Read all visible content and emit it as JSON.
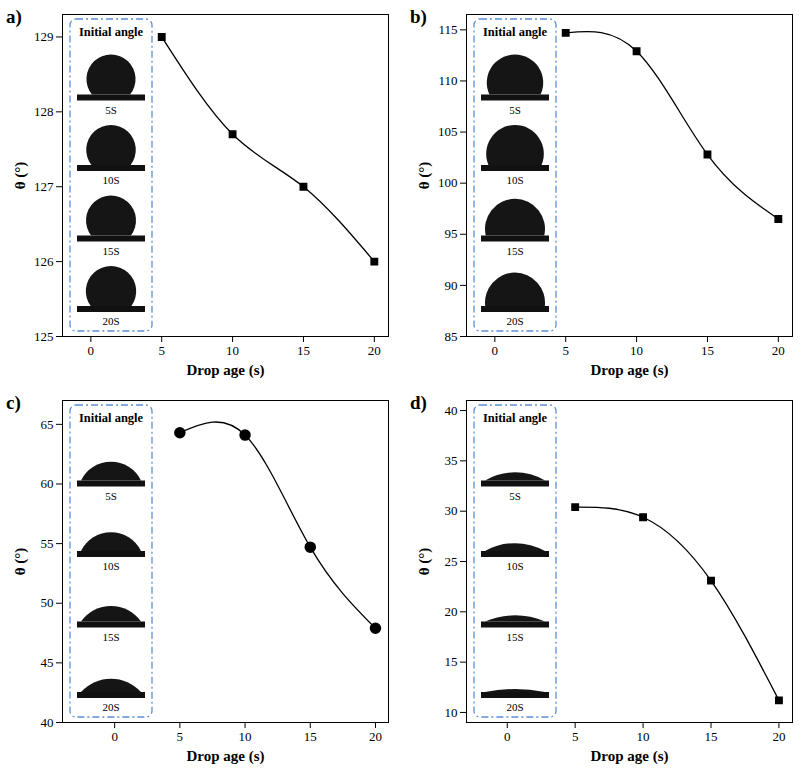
{
  "chart_data": [
    {
      "type": "line",
      "title": "a)",
      "x_label": "Drop age (s)",
      "y_label": "θ (°)",
      "x": [
        5,
        10,
        15,
        20
      ],
      "values": [
        129.0,
        127.7,
        127.0,
        126.0
      ],
      "color": "#000000",
      "marker": "square",
      "xlim": [
        -2,
        21
      ],
      "xticks": [
        0,
        5,
        10,
        15,
        20
      ],
      "ylim": [
        125,
        129.3
      ],
      "yticks": [
        125,
        126,
        127,
        128,
        129
      ],
      "inset_title": "Initial angle",
      "inset_labels": [
        "5S",
        "10S",
        "15S",
        "20S"
      ]
    },
    {
      "type": "line",
      "title": "b)",
      "x_label": "Drop age (s)",
      "y_label": "θ (°)",
      "x": [
        5,
        10,
        15,
        20
      ],
      "values": [
        114.7,
        112.9,
        102.8,
        96.5
      ],
      "color": "#000000",
      "marker": "square",
      "xlim": [
        -2,
        21
      ],
      "xticks": [
        0,
        5,
        10,
        15,
        20
      ],
      "ylim": [
        85,
        116.5
      ],
      "yticks": [
        85,
        90,
        95,
        100,
        105,
        110,
        115
      ],
      "inset_title": "Initial angle",
      "inset_labels": [
        "5S",
        "10S",
        "15S",
        "20S"
      ]
    },
    {
      "type": "line",
      "title": "c)",
      "x_label": "Drop age (s)",
      "y_label": "θ (°)",
      "x": [
        5,
        10,
        15,
        20
      ],
      "values": [
        64.3,
        64.1,
        54.7,
        47.9
      ],
      "color": "#000000",
      "marker": "circle",
      "xlim": [
        -4,
        21
      ],
      "xticks": [
        0,
        5,
        10,
        15,
        20
      ],
      "ylim": [
        40,
        67
      ],
      "yticks": [
        40,
        45,
        50,
        55,
        60,
        65
      ],
      "inset_title": "Initial angle",
      "inset_labels": [
        "5S",
        "10S",
        "15S",
        "20S"
      ]
    },
    {
      "type": "line",
      "title": "d)",
      "x_label": "Drop age (s)",
      "y_label": "θ (°)",
      "x": [
        5,
        10,
        15,
        20
      ],
      "values": [
        30.4,
        29.4,
        23.1,
        11.2
      ],
      "color": "#000000",
      "marker": "square",
      "xlim": [
        -3,
        21
      ],
      "xticks": [
        0,
        5,
        10,
        15,
        20
      ],
      "ylim": [
        9,
        41
      ],
      "yticks": [
        10,
        15,
        20,
        25,
        30,
        35,
        40
      ],
      "inset_title": "Initial angle",
      "inset_labels": [
        "5S",
        "10S",
        "15S",
        "20S"
      ]
    }
  ]
}
